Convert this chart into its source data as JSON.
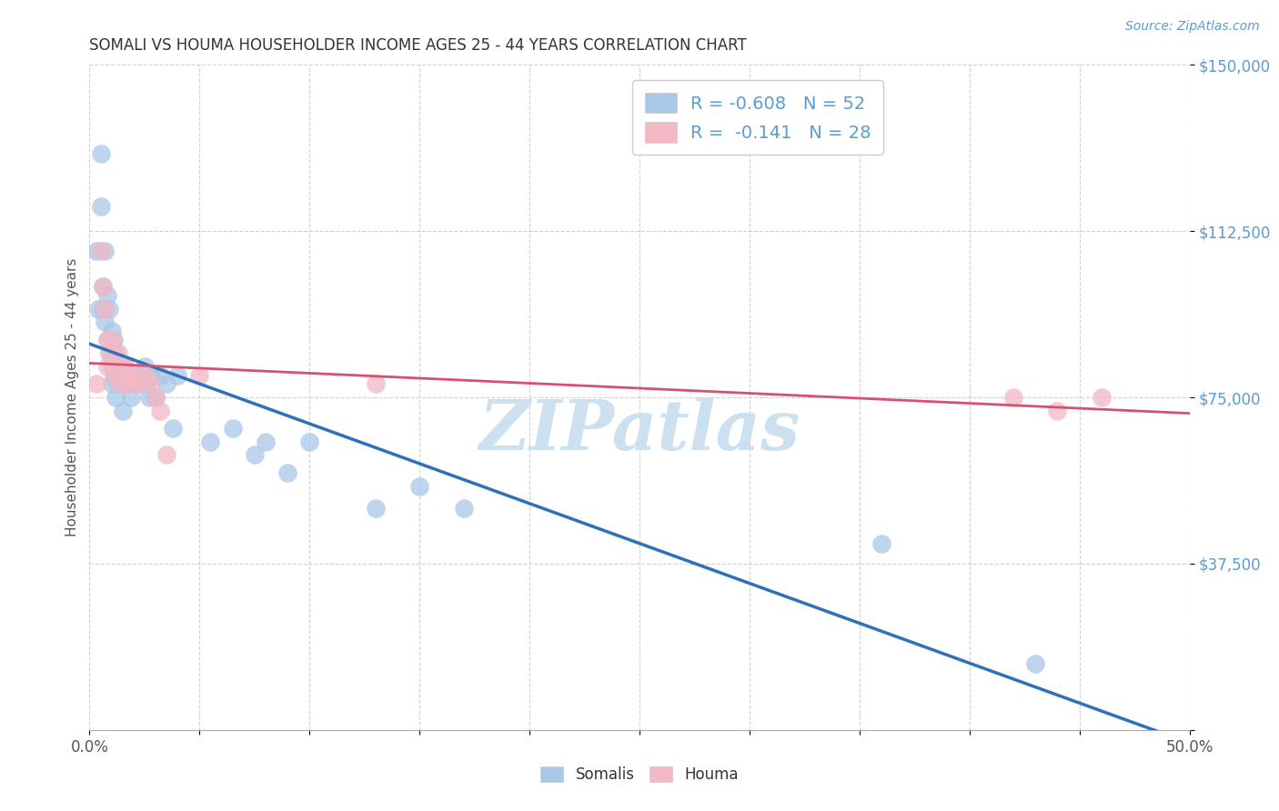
{
  "title": "SOMALI VS HOUMA HOUSEHOLDER INCOME AGES 25 - 44 YEARS CORRELATION CHART",
  "source": "Source: ZipAtlas.com",
  "ylabel": "Householder Income Ages 25 - 44 years",
  "xlim": [
    0.0,
    0.5
  ],
  "ylim": [
    0,
    150000
  ],
  "yticks": [
    0,
    37500,
    75000,
    112500,
    150000
  ],
  "ytick_labels": [
    "",
    "$37,500",
    "$75,000",
    "$112,500",
    "$150,000"
  ],
  "somali_R": "-0.608",
  "somali_N": "52",
  "houma_R": "-0.141",
  "houma_N": "28",
  "somali_color": "#a8c8e8",
  "houma_color": "#f4b8c4",
  "somali_line_color": "#3070b8",
  "houma_line_color": "#d85070",
  "legend_label_somali": "Somalis",
  "legend_label_houma": "Houma",
  "watermark": "ZIPatlas",
  "somali_x": [
    0.003,
    0.004,
    0.005,
    0.005,
    0.006,
    0.006,
    0.007,
    0.007,
    0.008,
    0.008,
    0.009,
    0.009,
    0.01,
    0.01,
    0.01,
    0.011,
    0.011,
    0.012,
    0.012,
    0.013,
    0.013,
    0.014,
    0.015,
    0.015,
    0.016,
    0.017,
    0.018,
    0.019,
    0.02,
    0.021,
    0.022,
    0.023,
    0.025,
    0.026,
    0.027,
    0.028,
    0.03,
    0.032,
    0.035,
    0.038,
    0.04,
    0.055,
    0.065,
    0.075,
    0.08,
    0.09,
    0.1,
    0.13,
    0.15,
    0.17,
    0.36,
    0.43
  ],
  "somali_y": [
    108000,
    95000,
    130000,
    118000,
    100000,
    95000,
    108000,
    92000,
    98000,
    88000,
    95000,
    85000,
    90000,
    82000,
    78000,
    88000,
    80000,
    85000,
    75000,
    82000,
    78000,
    80000,
    78000,
    72000,
    82000,
    78000,
    80000,
    75000,
    80000,
    78000,
    80000,
    78000,
    82000,
    78000,
    75000,
    80000,
    75000,
    80000,
    78000,
    68000,
    80000,
    65000,
    68000,
    62000,
    65000,
    58000,
    65000,
    50000,
    55000,
    50000,
    42000,
    15000
  ],
  "houma_x": [
    0.003,
    0.005,
    0.006,
    0.007,
    0.008,
    0.008,
    0.009,
    0.01,
    0.011,
    0.012,
    0.013,
    0.014,
    0.015,
    0.016,
    0.018,
    0.018,
    0.02,
    0.022,
    0.025,
    0.028,
    0.03,
    0.032,
    0.035,
    0.05,
    0.13,
    0.42,
    0.44,
    0.46
  ],
  "houma_y": [
    78000,
    108000,
    100000,
    95000,
    88000,
    82000,
    85000,
    88000,
    82000,
    80000,
    85000,
    78000,
    80000,
    82000,
    80000,
    78000,
    80000,
    78000,
    80000,
    78000,
    75000,
    72000,
    62000,
    80000,
    78000,
    75000,
    72000,
    75000
  ],
  "background_color": "#ffffff",
  "grid_color": "#cccccc",
  "title_color": "#333333",
  "axis_label_color": "#555555",
  "tick_value_color": "#5b9bd5",
  "source_color": "#5b9bd5",
  "watermark_color": "#cce0f0"
}
